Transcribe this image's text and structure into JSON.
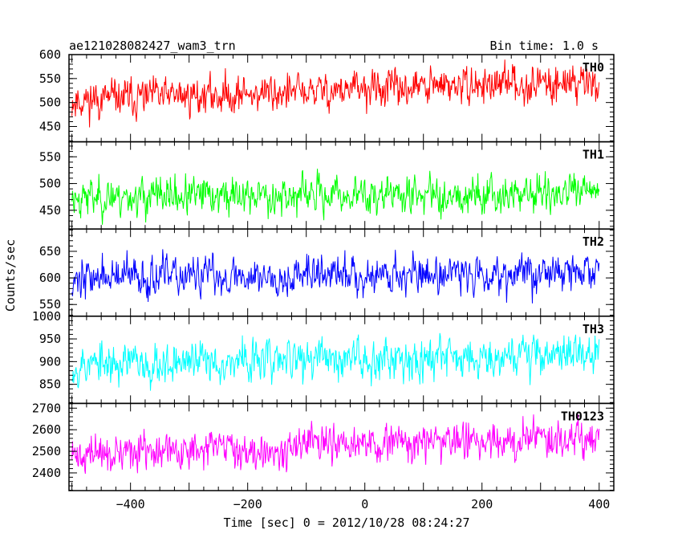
{
  "chart_data": {
    "type": "line",
    "title_left": "ae121028082427_wam3_trn",
    "title_right": "Bin time: 1.0 s",
    "xlabel": "Time [sec] 0 = 2012/10/28 08:24:27",
    "ylabel": "Counts/sec",
    "xlim": [
      -505,
      425
    ],
    "xticks": [
      -400,
      -200,
      0,
      200,
      400
    ],
    "xtick_labels": [
      "−400",
      "−200",
      "0",
      "200",
      "400"
    ],
    "x_range": [
      -500,
      400
    ],
    "x_step": 1,
    "panels": [
      {
        "name": "TH0",
        "color": "#ff0000",
        "ylim": [
          418,
          600
        ],
        "yticks": [
          450,
          500,
          550,
          600
        ],
        "trend_start": 505,
        "trend_end": 545,
        "amplitude": 30,
        "seed": 11
      },
      {
        "name": "TH1",
        "color": "#00ff00",
        "ylim": [
          415,
          578
        ],
        "yticks": [
          450,
          500,
          550
        ],
        "trend_start": 475,
        "trend_end": 482,
        "amplitude": 27,
        "seed": 23
      },
      {
        "name": "TH2",
        "color": "#0000ff",
        "ylim": [
          528,
          692
        ],
        "yticks": [
          550,
          600,
          650
        ],
        "trend_start": 600,
        "trend_end": 612,
        "amplitude": 28,
        "seed": 37
      },
      {
        "name": "TH3",
        "color": "#00ffff",
        "ylim": [
          808,
          1000
        ],
        "yticks": [
          850,
          900,
          950,
          1000
        ],
        "trend_start": 893,
        "trend_end": 920,
        "amplitude": 35,
        "seed": 53
      },
      {
        "name": "TH0123",
        "color": "#ff00ff",
        "ylim": [
          2318,
          2722
        ],
        "yticks": [
          2400,
          2500,
          2600,
          2700
        ],
        "trend_start": 2482,
        "trend_end": 2570,
        "amplitude": 65,
        "seed": 71
      }
    ]
  }
}
